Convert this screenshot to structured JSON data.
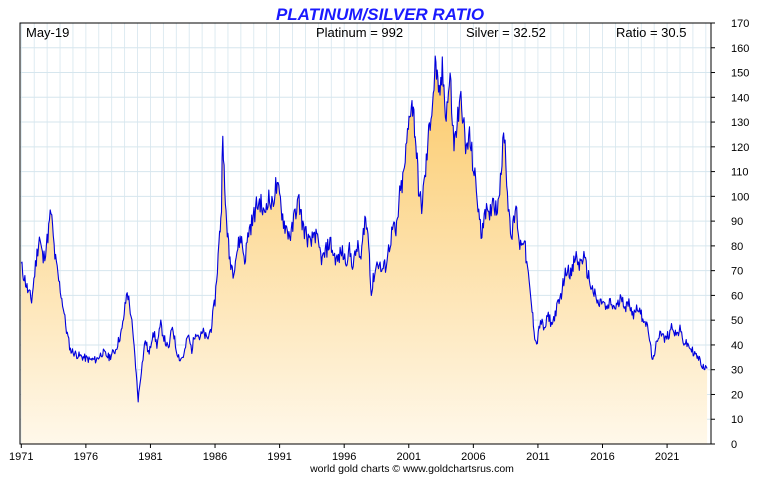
{
  "header": {
    "title": "PLATINUM/SILVER RATIO",
    "date": "May-19",
    "platinum": "Platinum = 992",
    "silver": "Silver = 32.52",
    "ratio": "Ratio = 30.5"
  },
  "footer": {
    "credit": "world gold charts © www.goldchartsrus.com"
  },
  "colors": {
    "title": "#1a1aff",
    "line": "#0000dd",
    "fill_top": "#fbc865",
    "fill_bottom": "#fff8ea",
    "grid": "#d6e6ee"
  },
  "chart_data": {
    "type": "area",
    "title": "PLATINUM/SILVER RATIO",
    "xlabel": "",
    "ylabel": "",
    "xlim": [
      1970.9,
      2024.4
    ],
    "ylim": [
      0,
      170
    ],
    "x_ticks": [
      1971,
      1976,
      1981,
      1986,
      1991,
      1996,
      2001,
      2006,
      2011,
      2016,
      2021
    ],
    "y_ticks": [
      0,
      10,
      20,
      30,
      40,
      50,
      60,
      70,
      80,
      90,
      100,
      110,
      120,
      130,
      140,
      150,
      160,
      170
    ],
    "y_axis_position": "right",
    "grid": true,
    "series": [
      {
        "points": [
          [
            1971.0,
            72
          ],
          [
            1971.5,
            62
          ],
          [
            1971.8,
            58
          ],
          [
            1972.1,
            72
          ],
          [
            1972.4,
            84
          ],
          [
            1972.7,
            74
          ],
          [
            1973.0,
            82
          ],
          [
            1973.3,
            94
          ],
          [
            1973.6,
            76
          ],
          [
            1973.9,
            66
          ],
          [
            1974.2,
            57
          ],
          [
            1974.5,
            46
          ],
          [
            1974.8,
            38
          ],
          [
            1975.3,
            36
          ],
          [
            1975.8,
            35
          ],
          [
            1976.3,
            34
          ],
          [
            1976.8,
            34
          ],
          [
            1977.3,
            37
          ],
          [
            1977.8,
            35
          ],
          [
            1978.3,
            38
          ],
          [
            1978.8,
            46
          ],
          [
            1979.2,
            62
          ],
          [
            1979.5,
            52
          ],
          [
            1979.8,
            35
          ],
          [
            1980.05,
            18
          ],
          [
            1980.3,
            30
          ],
          [
            1980.6,
            42
          ],
          [
            1980.9,
            36
          ],
          [
            1981.2,
            46
          ],
          [
            1981.5,
            40
          ],
          [
            1981.8,
            48
          ],
          [
            1982.1,
            42
          ],
          [
            1982.4,
            38
          ],
          [
            1982.7,
            48
          ],
          [
            1983.0,
            38
          ],
          [
            1983.3,
            34
          ],
          [
            1983.6,
            36
          ],
          [
            1983.9,
            44
          ],
          [
            1984.2,
            38
          ],
          [
            1984.5,
            46
          ],
          [
            1984.8,
            43
          ],
          [
            1985.1,
            45
          ],
          [
            1985.4,
            42
          ],
          [
            1985.7,
            47
          ],
          [
            1986.0,
            58
          ],
          [
            1986.3,
            80
          ],
          [
            1986.5,
            96
          ],
          [
            1986.6,
            130
          ],
          [
            1986.75,
            100
          ],
          [
            1986.9,
            90
          ],
          [
            1987.1,
            76
          ],
          [
            1987.4,
            70
          ],
          [
            1987.7,
            78
          ],
          [
            1988.0,
            84
          ],
          [
            1988.3,
            74
          ],
          [
            1988.6,
            86
          ],
          [
            1988.9,
            90
          ],
          [
            1989.2,
            96
          ],
          [
            1989.5,
            98
          ],
          [
            1989.8,
            92
          ],
          [
            1990.1,
            100
          ],
          [
            1990.4,
            96
          ],
          [
            1990.7,
            104
          ],
          [
            1991.0,
            100
          ],
          [
            1991.3,
            90
          ],
          [
            1991.6,
            86
          ],
          [
            1991.9,
            84
          ],
          [
            1992.2,
            94
          ],
          [
            1992.5,
            98
          ],
          [
            1992.8,
            88
          ],
          [
            1993.1,
            84
          ],
          [
            1993.4,
            80
          ],
          [
            1993.7,
            86
          ],
          [
            1994.0,
            80
          ],
          [
            1994.3,
            74
          ],
          [
            1994.6,
            78
          ],
          [
            1994.9,
            82
          ],
          [
            1995.2,
            76
          ],
          [
            1995.5,
            74
          ],
          [
            1995.8,
            78
          ],
          [
            1996.1,
            74
          ],
          [
            1996.4,
            78
          ],
          [
            1996.7,
            72
          ],
          [
            1997.0,
            80
          ],
          [
            1997.3,
            74
          ],
          [
            1997.6,
            92
          ],
          [
            1997.9,
            82
          ],
          [
            1998.1,
            60
          ],
          [
            1998.3,
            68
          ],
          [
            1998.6,
            74
          ],
          [
            1998.9,
            70
          ],
          [
            1999.2,
            72
          ],
          [
            1999.5,
            80
          ],
          [
            1999.8,
            88
          ],
          [
            2000.0,
            84
          ],
          [
            2000.3,
            100
          ],
          [
            2000.6,
            108
          ],
          [
            2000.9,
            124
          ],
          [
            2001.2,
            140
          ],
          [
            2001.4,
            132
          ],
          [
            2001.6,
            118
          ],
          [
            2001.8,
            100
          ],
          [
            2002.0,
            96
          ],
          [
            2002.3,
            110
          ],
          [
            2002.6,
            128
          ],
          [
            2002.9,
            142
          ],
          [
            2003.1,
            155
          ],
          [
            2003.3,
            138
          ],
          [
            2003.6,
            150
          ],
          [
            2003.9,
            134
          ],
          [
            2004.2,
            148
          ],
          [
            2004.5,
            120
          ],
          [
            2004.8,
            132
          ],
          [
            2005.1,
            140
          ],
          [
            2005.4,
            118
          ],
          [
            2005.7,
            124
          ],
          [
            2006.0,
            112
          ],
          [
            2006.3,
            100
          ],
          [
            2006.6,
            84
          ],
          [
            2006.9,
            96
          ],
          [
            2007.2,
            90
          ],
          [
            2007.5,
            100
          ],
          [
            2007.8,
            94
          ],
          [
            2008.1,
            108
          ],
          [
            2008.4,
            126
          ],
          [
            2008.7,
            96
          ],
          [
            2009.0,
            84
          ],
          [
            2009.3,
            96
          ],
          [
            2009.6,
            80
          ],
          [
            2009.9,
            84
          ],
          [
            2010.2,
            70
          ],
          [
            2010.5,
            56
          ],
          [
            2010.75,
            44
          ],
          [
            2010.9,
            40
          ],
          [
            2011.2,
            50
          ],
          [
            2011.5,
            46
          ],
          [
            2011.8,
            52
          ],
          [
            2012.1,
            48
          ],
          [
            2012.4,
            54
          ],
          [
            2012.7,
            58
          ],
          [
            2013.0,
            66
          ],
          [
            2013.3,
            72
          ],
          [
            2013.6,
            68
          ],
          [
            2013.9,
            76
          ],
          [
            2014.2,
            72
          ],
          [
            2014.5,
            76
          ],
          [
            2014.8,
            70
          ],
          [
            2015.1,
            64
          ],
          [
            2015.4,
            60
          ],
          [
            2015.7,
            56
          ],
          [
            2016.0,
            58
          ],
          [
            2016.3,
            54
          ],
          [
            2016.6,
            57
          ],
          [
            2016.9,
            55
          ],
          [
            2017.2,
            56
          ],
          [
            2017.5,
            60
          ],
          [
            2017.8,
            55
          ],
          [
            2018.1,
            57
          ],
          [
            2018.4,
            52
          ],
          [
            2018.7,
            56
          ],
          [
            2019.0,
            52
          ],
          [
            2019.3,
            50
          ],
          [
            2019.6,
            44
          ],
          [
            2019.8,
            36
          ],
          [
            2020.0,
            34
          ],
          [
            2020.2,
            42
          ],
          [
            2020.5,
            46
          ],
          [
            2020.8,
            42
          ],
          [
            2021.1,
            44
          ],
          [
            2021.4,
            48
          ],
          [
            2021.7,
            44
          ],
          [
            2022.0,
            46
          ],
          [
            2022.3,
            41
          ],
          [
            2022.6,
            40
          ],
          [
            2022.9,
            38
          ],
          [
            2023.2,
            36
          ],
          [
            2023.5,
            34
          ],
          [
            2023.8,
            31
          ],
          [
            2024.1,
            30.5
          ]
        ]
      }
    ]
  }
}
